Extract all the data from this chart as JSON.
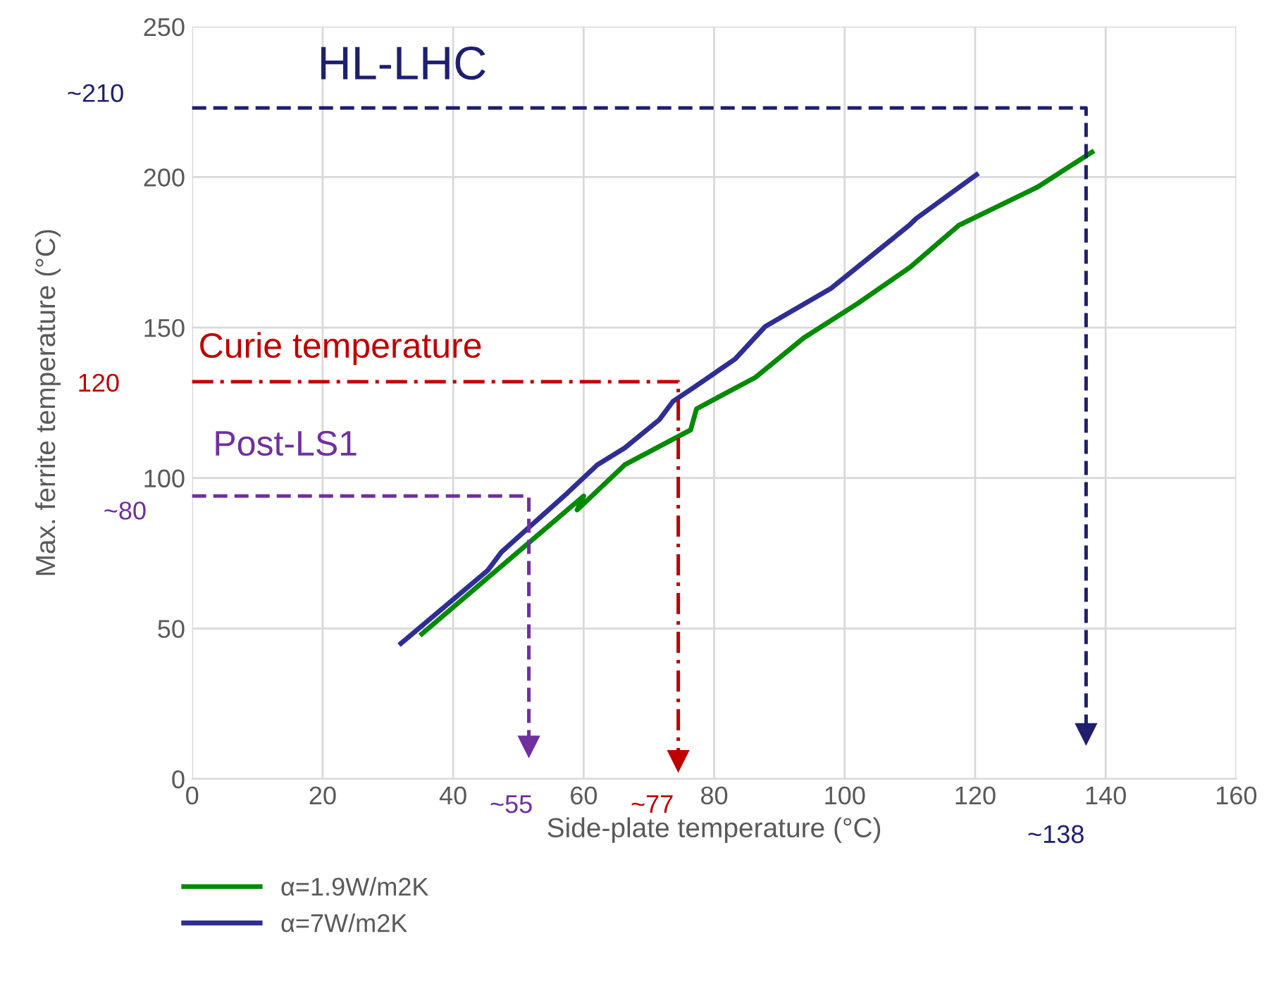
{
  "chart_data": {
    "type": "line",
    "xlabel": "Side-plate temperature (°C)",
    "ylabel": "Max. ferrite temperature (°C)",
    "xlim": [
      0,
      160
    ],
    "xticks": [
      0,
      20,
      40,
      60,
      80,
      100,
      120,
      140,
      160
    ],
    "ylim": [
      0,
      250
    ],
    "yticks": [
      0,
      50,
      100,
      150,
      200,
      250
    ],
    "grid": true,
    "legend": "bottom left",
    "marker": "none",
    "series": [
      {
        "name": "α=1.9W/m2K",
        "color": "#008a00",
        "x": [
          35.2,
          60,
          59,
          66.3,
          76.4,
          77.3,
          86.3,
          93.7,
          102,
          110,
          117.5,
          129.5,
          137.9
        ],
        "values": [
          48.2,
          94,
          89.4,
          104.4,
          116,
          123,
          133.4,
          146.5,
          158,
          170,
          184,
          196.6,
          208.3
        ]
      },
      {
        "name": "α=7W/m2K",
        "color": "#2e2e94",
        "x": [
          32,
          45.3,
          47.4,
          57.5,
          62.1,
          66.3,
          71.6,
          73.7,
          76.8,
          83.2,
          87.8,
          97.9,
          109.9,
          111,
          120.2
        ],
        "values": [
          45,
          69.3,
          75.4,
          95,
          104.4,
          110,
          119.4,
          125.5,
          130,
          139.5,
          150.3,
          163,
          184,
          186.3,
          200.8
        ]
      },
      {
        "color": "#7030a0",
        "line_style": "dashed",
        "x": [
          0,
          51.6,
          51.6
        ],
        "values": [
          94,
          94,
          10.8
        ]
      },
      {
        "color": "#c00000",
        "line_style": "dashdot",
        "x": [
          0,
          74.5,
          74.5
        ],
        "values": [
          132,
          132,
          6
        ]
      },
      {
        "color": "#1f1f6e",
        "line_style": "dashed",
        "x": [
          0,
          137,
          137
        ],
        "values": [
          223,
          223,
          15
        ]
      }
    ],
    "annotations": [
      "HL-LHC",
      "Curie temperature",
      "Post-LS1",
      "~210",
      "~80",
      "120",
      "~55",
      "~77",
      "~138"
    ]
  }
}
